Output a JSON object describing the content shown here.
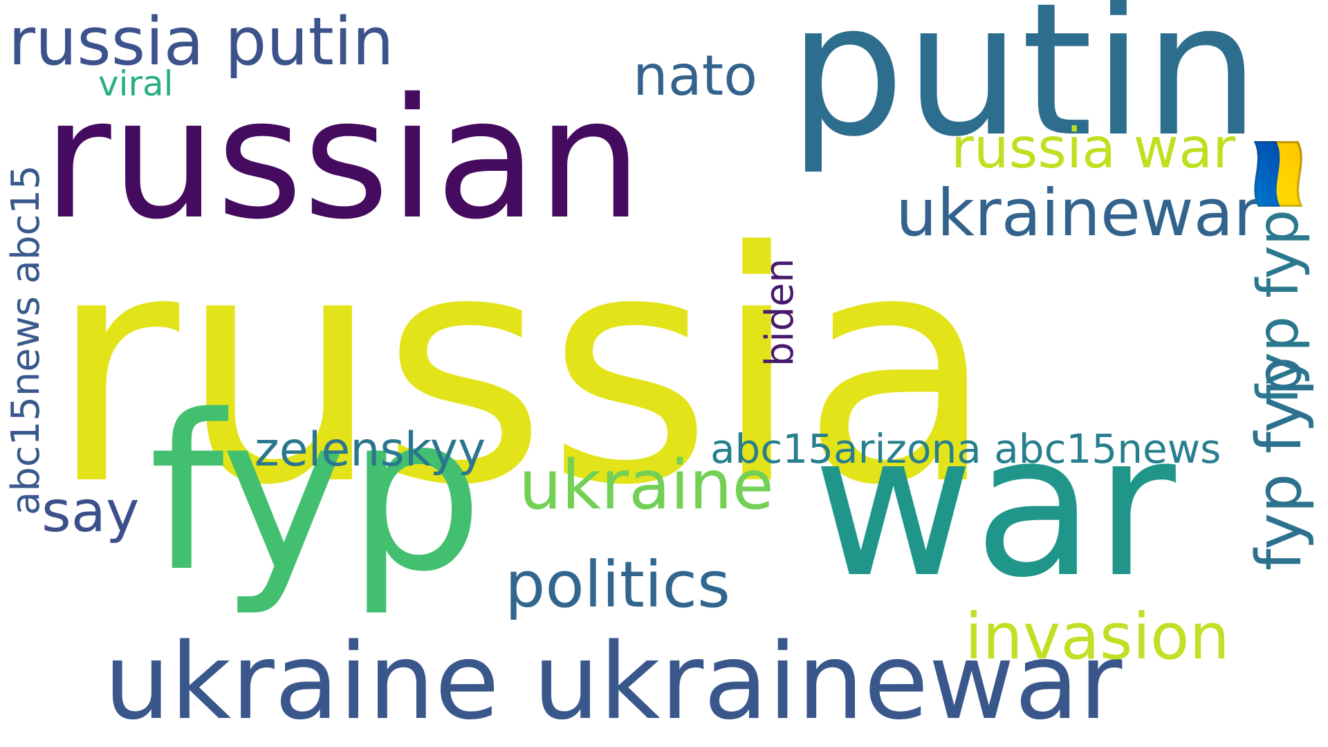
{
  "wordcloud": {
    "background": "#ffffff",
    "words": {
      "russia": {
        "text": "russia",
        "color": "#e3e319",
        "orientation": "horizontal"
      },
      "russian": {
        "text": "russian",
        "color": "#440b5f",
        "orientation": "horizontal"
      },
      "putin": {
        "text": "putin",
        "color": "#2d6e8e",
        "orientation": "horizontal"
      },
      "war": {
        "text": "war",
        "color": "#20968b",
        "orientation": "horizontal"
      },
      "fyp": {
        "text": "fyp",
        "color": "#43bf70",
        "orientation": "horizontal"
      },
      "ukraine_ukrainewar": {
        "text": "ukraine ukrainewar",
        "color": "#3a578c",
        "orientation": "horizontal"
      },
      "russia_putin": {
        "text": "russia putin",
        "color": "#3b528b",
        "orientation": "horizontal"
      },
      "nato": {
        "text": "nato",
        "color": "#33628d",
        "orientation": "horizontal"
      },
      "russia_war": {
        "text": "russia war",
        "color": "#bde120",
        "orientation": "horizontal"
      },
      "ukrainewar": {
        "text": "ukrainewar",
        "color": "#33638d",
        "orientation": "horizontal"
      },
      "ukraine": {
        "text": "ukraine",
        "color": "#72d055",
        "orientation": "horizontal"
      },
      "zelenskyy": {
        "text": "zelenskyy",
        "color": "#2a768e",
        "orientation": "horizontal"
      },
      "say": {
        "text": "say",
        "color": "#3d4f8a",
        "orientation": "horizontal"
      },
      "politics": {
        "text": "politics",
        "color": "#31668e",
        "orientation": "horizontal"
      },
      "invasion": {
        "text": "invasion",
        "color": "#c0df25",
        "orientation": "horizontal"
      },
      "abc15arizona": {
        "text": "abc15arizona abc15news",
        "color": "#277f8e",
        "orientation": "horizontal"
      },
      "viral": {
        "text": "viral",
        "color": "#28ae80",
        "orientation": "horizontal"
      },
      "biden": {
        "text": "biden",
        "color": "#481a6c",
        "orientation": "vertical"
      },
      "abc15news_abc15": {
        "text": "abc15news abc15",
        "color": "#38598c",
        "orientation": "vertical"
      },
      "fyp_fyp_emoji": {
        "text": "fyp fyp🇺🇦",
        "color": "#2a788e",
        "orientation": "vertical"
      },
      "fyp_fyp": {
        "text": "fyp fyp",
        "color": "#2c718e",
        "orientation": "vertical"
      }
    }
  }
}
